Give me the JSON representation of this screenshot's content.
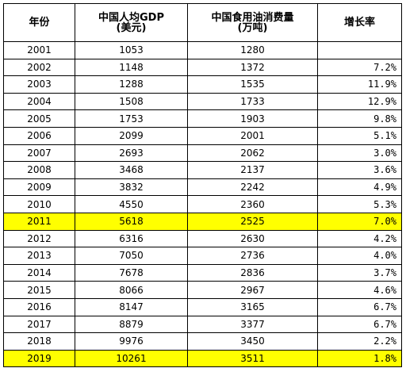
{
  "table": {
    "headers": [
      {
        "line1": "年份",
        "line2": ""
      },
      {
        "line1": "中国人均GDP",
        "line2": "(美元)"
      },
      {
        "line1": "中国食用油消费量",
        "line2": "(万吨)"
      },
      {
        "line1": "增长率",
        "line2": ""
      }
    ],
    "highlight_color": "#ffff00",
    "rows": [
      {
        "year": "2001",
        "gdp": "1053",
        "oil": "1280",
        "rate": "",
        "highlight": false
      },
      {
        "year": "2002",
        "gdp": "1148",
        "oil": "1372",
        "rate": "7.2%",
        "highlight": false
      },
      {
        "year": "2003",
        "gdp": "1288",
        "oil": "1535",
        "rate": "11.9%",
        "highlight": false
      },
      {
        "year": "2004",
        "gdp": "1508",
        "oil": "1733",
        "rate": "12.9%",
        "highlight": false
      },
      {
        "year": "2005",
        "gdp": "1753",
        "oil": "1903",
        "rate": "9.8%",
        "highlight": false
      },
      {
        "year": "2006",
        "gdp": "2099",
        "oil": "2001",
        "rate": "5.1%",
        "highlight": false
      },
      {
        "year": "2007",
        "gdp": "2693",
        "oil": "2062",
        "rate": "3.0%",
        "highlight": false
      },
      {
        "year": "2008",
        "gdp": "3468",
        "oil": "2137",
        "rate": "3.6%",
        "highlight": false
      },
      {
        "year": "2009",
        "gdp": "3832",
        "oil": "2242",
        "rate": "4.9%",
        "highlight": false
      },
      {
        "year": "2010",
        "gdp": "4550",
        "oil": "2360",
        "rate": "5.3%",
        "highlight": false
      },
      {
        "year": "2011",
        "gdp": "5618",
        "oil": "2525",
        "rate": "7.0%",
        "highlight": true
      },
      {
        "year": "2012",
        "gdp": "6316",
        "oil": "2630",
        "rate": "4.2%",
        "highlight": false
      },
      {
        "year": "2013",
        "gdp": "7050",
        "oil": "2736",
        "rate": "4.0%",
        "highlight": false
      },
      {
        "year": "2014",
        "gdp": "7678",
        "oil": "2836",
        "rate": "3.7%",
        "highlight": false
      },
      {
        "year": "2015",
        "gdp": "8066",
        "oil": "2967",
        "rate": "4.6%",
        "highlight": false
      },
      {
        "year": "2016",
        "gdp": "8147",
        "oil": "3165",
        "rate": "6.7%",
        "highlight": false
      },
      {
        "year": "2017",
        "gdp": "8879",
        "oil": "3377",
        "rate": "6.7%",
        "highlight": false
      },
      {
        "year": "2018",
        "gdp": "9976",
        "oil": "3450",
        "rate": "2.2%",
        "highlight": false
      },
      {
        "year": "2019",
        "gdp": "10261",
        "oil": "3511",
        "rate": "1.8%",
        "highlight": true
      }
    ]
  }
}
